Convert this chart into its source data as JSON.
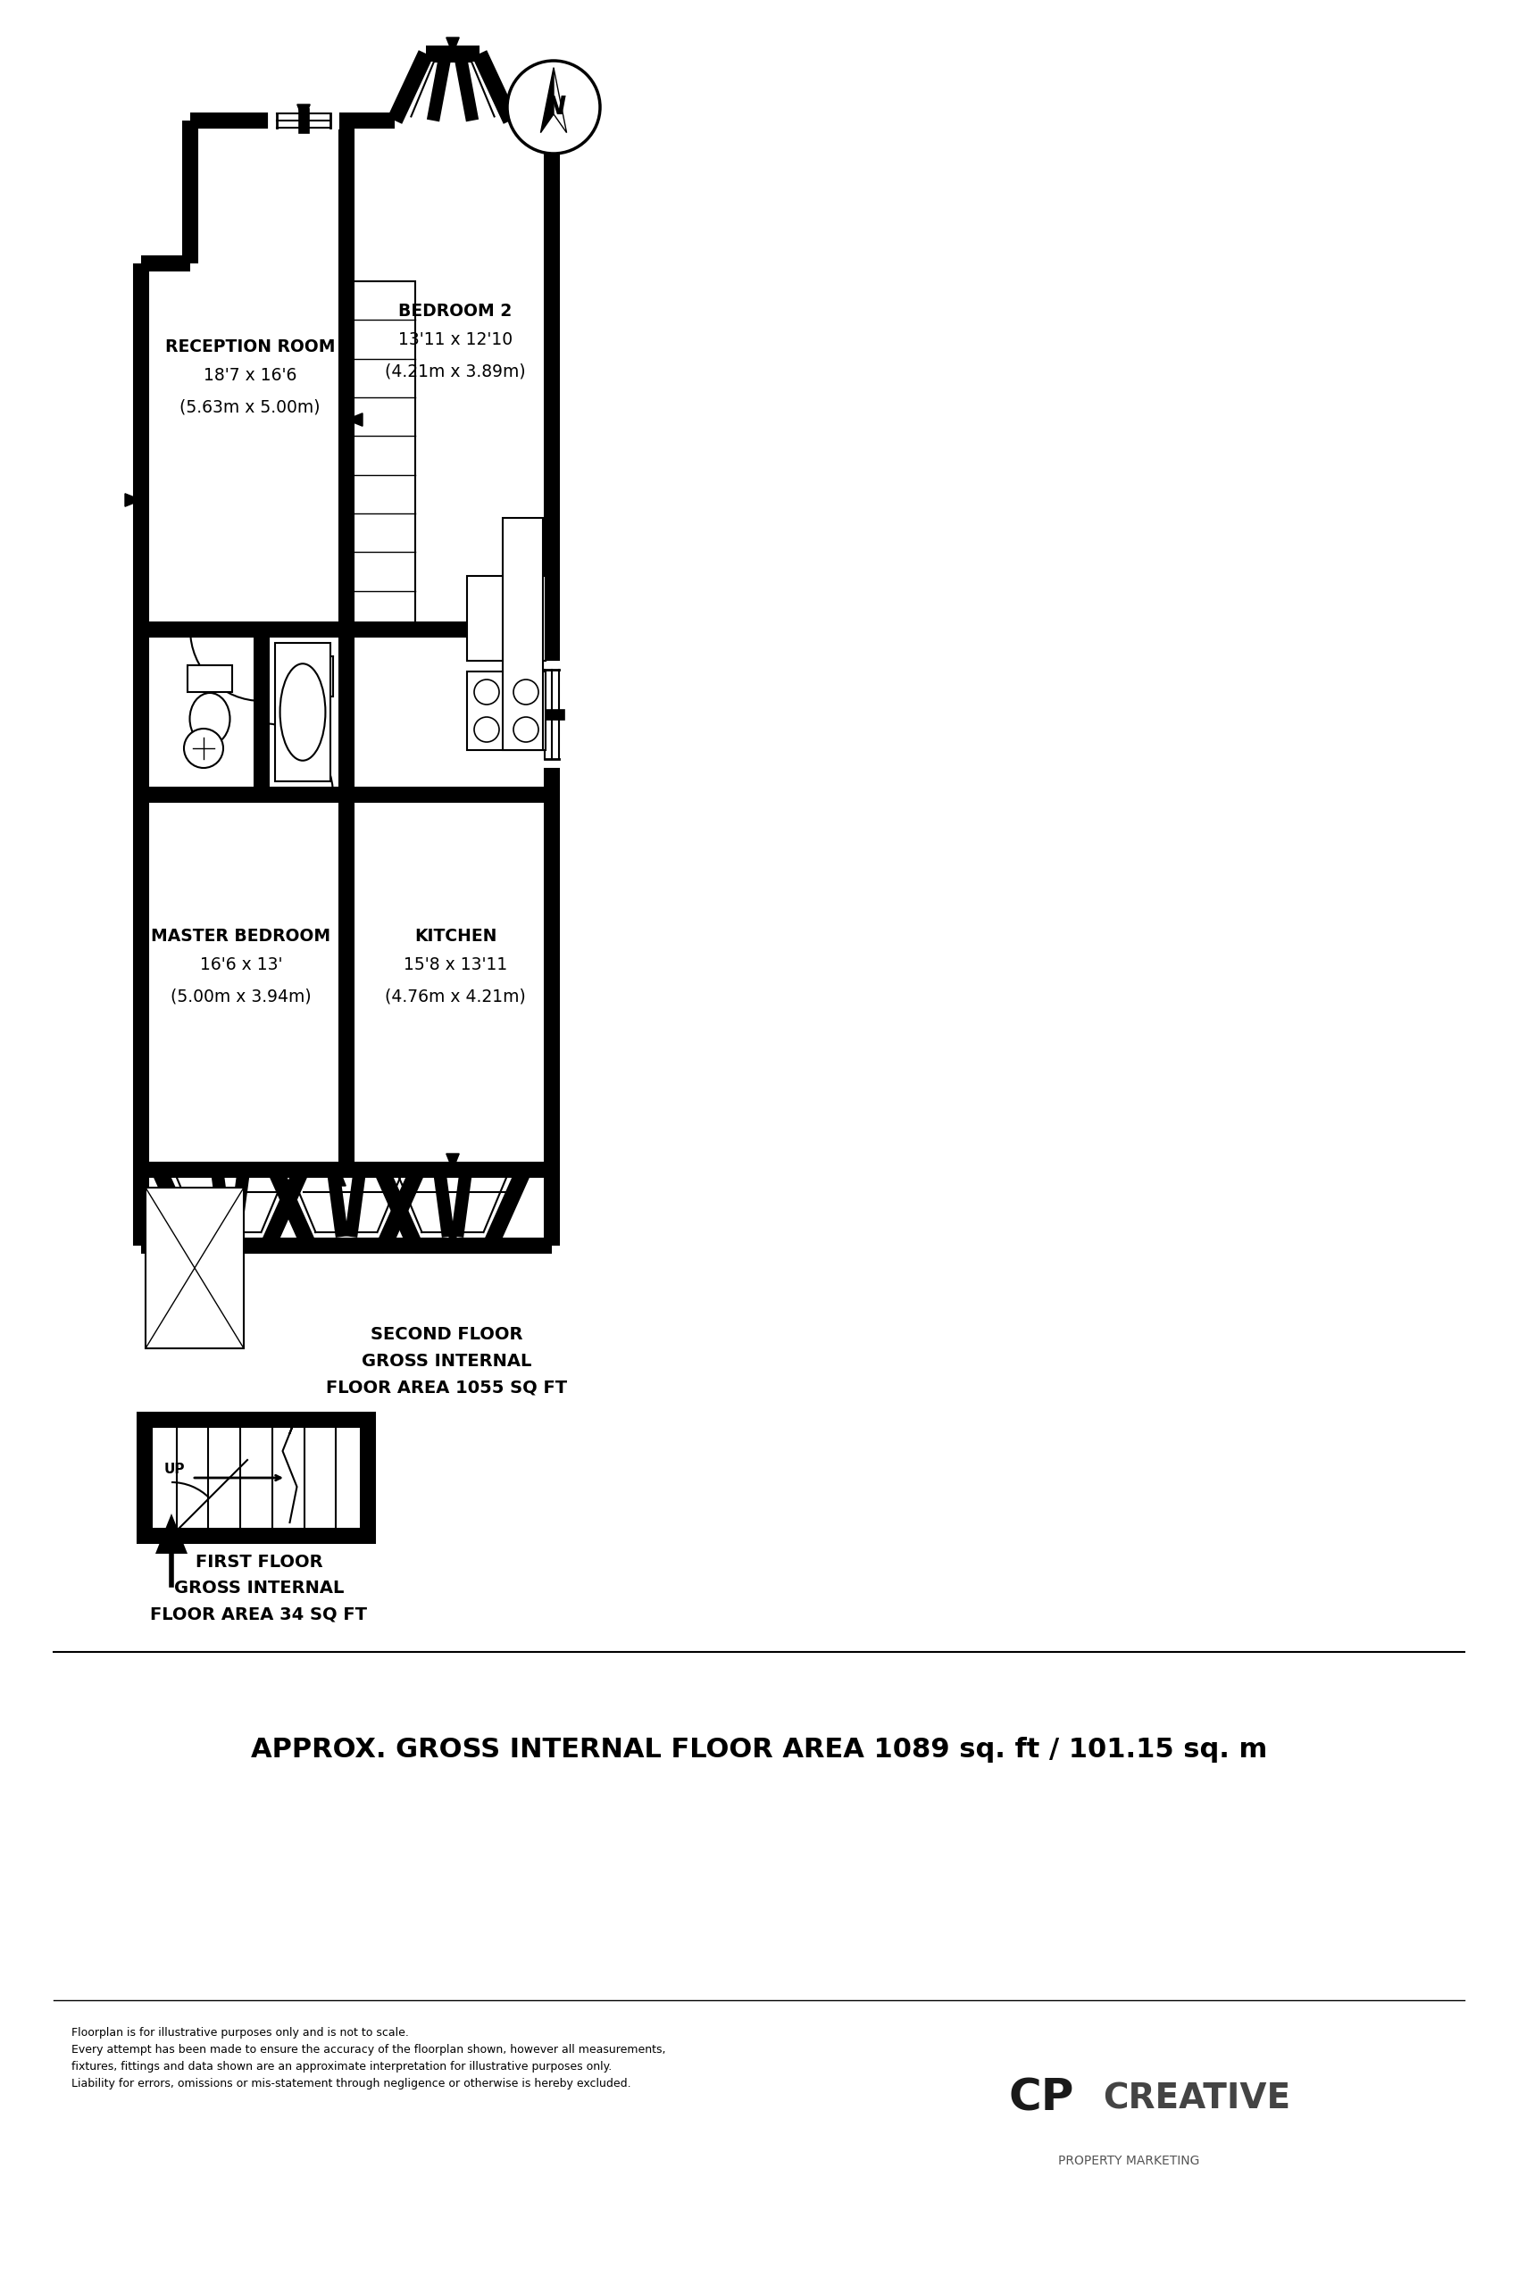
{
  "bg_color": "#ffffff",
  "wall_lw": 14,
  "thin_lw": 2,
  "floor_area_text": "SECOND FLOOR\nGROSS INTERNAL\nFLOOR AREA 1055 SQ FT",
  "first_floor_text": "FIRST FLOOR\nGROSS INTERNAL\nFLOOR AREA 34 SQ FT",
  "total_area_text": "APPROX. GROSS INTERNAL FLOOR AREA 1089 sq. ft / 101.15 sq. m",
  "disclaimer_line1": "Floorplan is for illustrative purposes only and is not to scale.",
  "disclaimer_line2": "Every attempt has been made to ensure the accuracy of the floorplan shown, however all measurements,",
  "disclaimer_line3": "fixtures, fittings and data shown are an approximate interpretation for illustrative purposes only.",
  "disclaimer_line4": "Liability for errors, omissions or mis-statement through negligence or otherwise is hereby excluded.",
  "reception_label": "RECEPTION ROOM",
  "reception_size": "18'7 x 16'6",
  "reception_metric": "(5.63m x 5.00m)",
  "bedroom2_label": "BEDROOM 2",
  "bedroom2_size": "13'11 x 12'10",
  "bedroom2_metric": "(4.21m x 3.89m)",
  "master_label": "MASTER BEDROOM",
  "master_size": "16'6 x 13'",
  "master_metric": "(5.00m x 3.94m)",
  "kitchen_label": "KITCHEN",
  "kitchen_size": "15'8 x 13'11",
  "kitchen_metric": "(4.76m x 4.21m)"
}
